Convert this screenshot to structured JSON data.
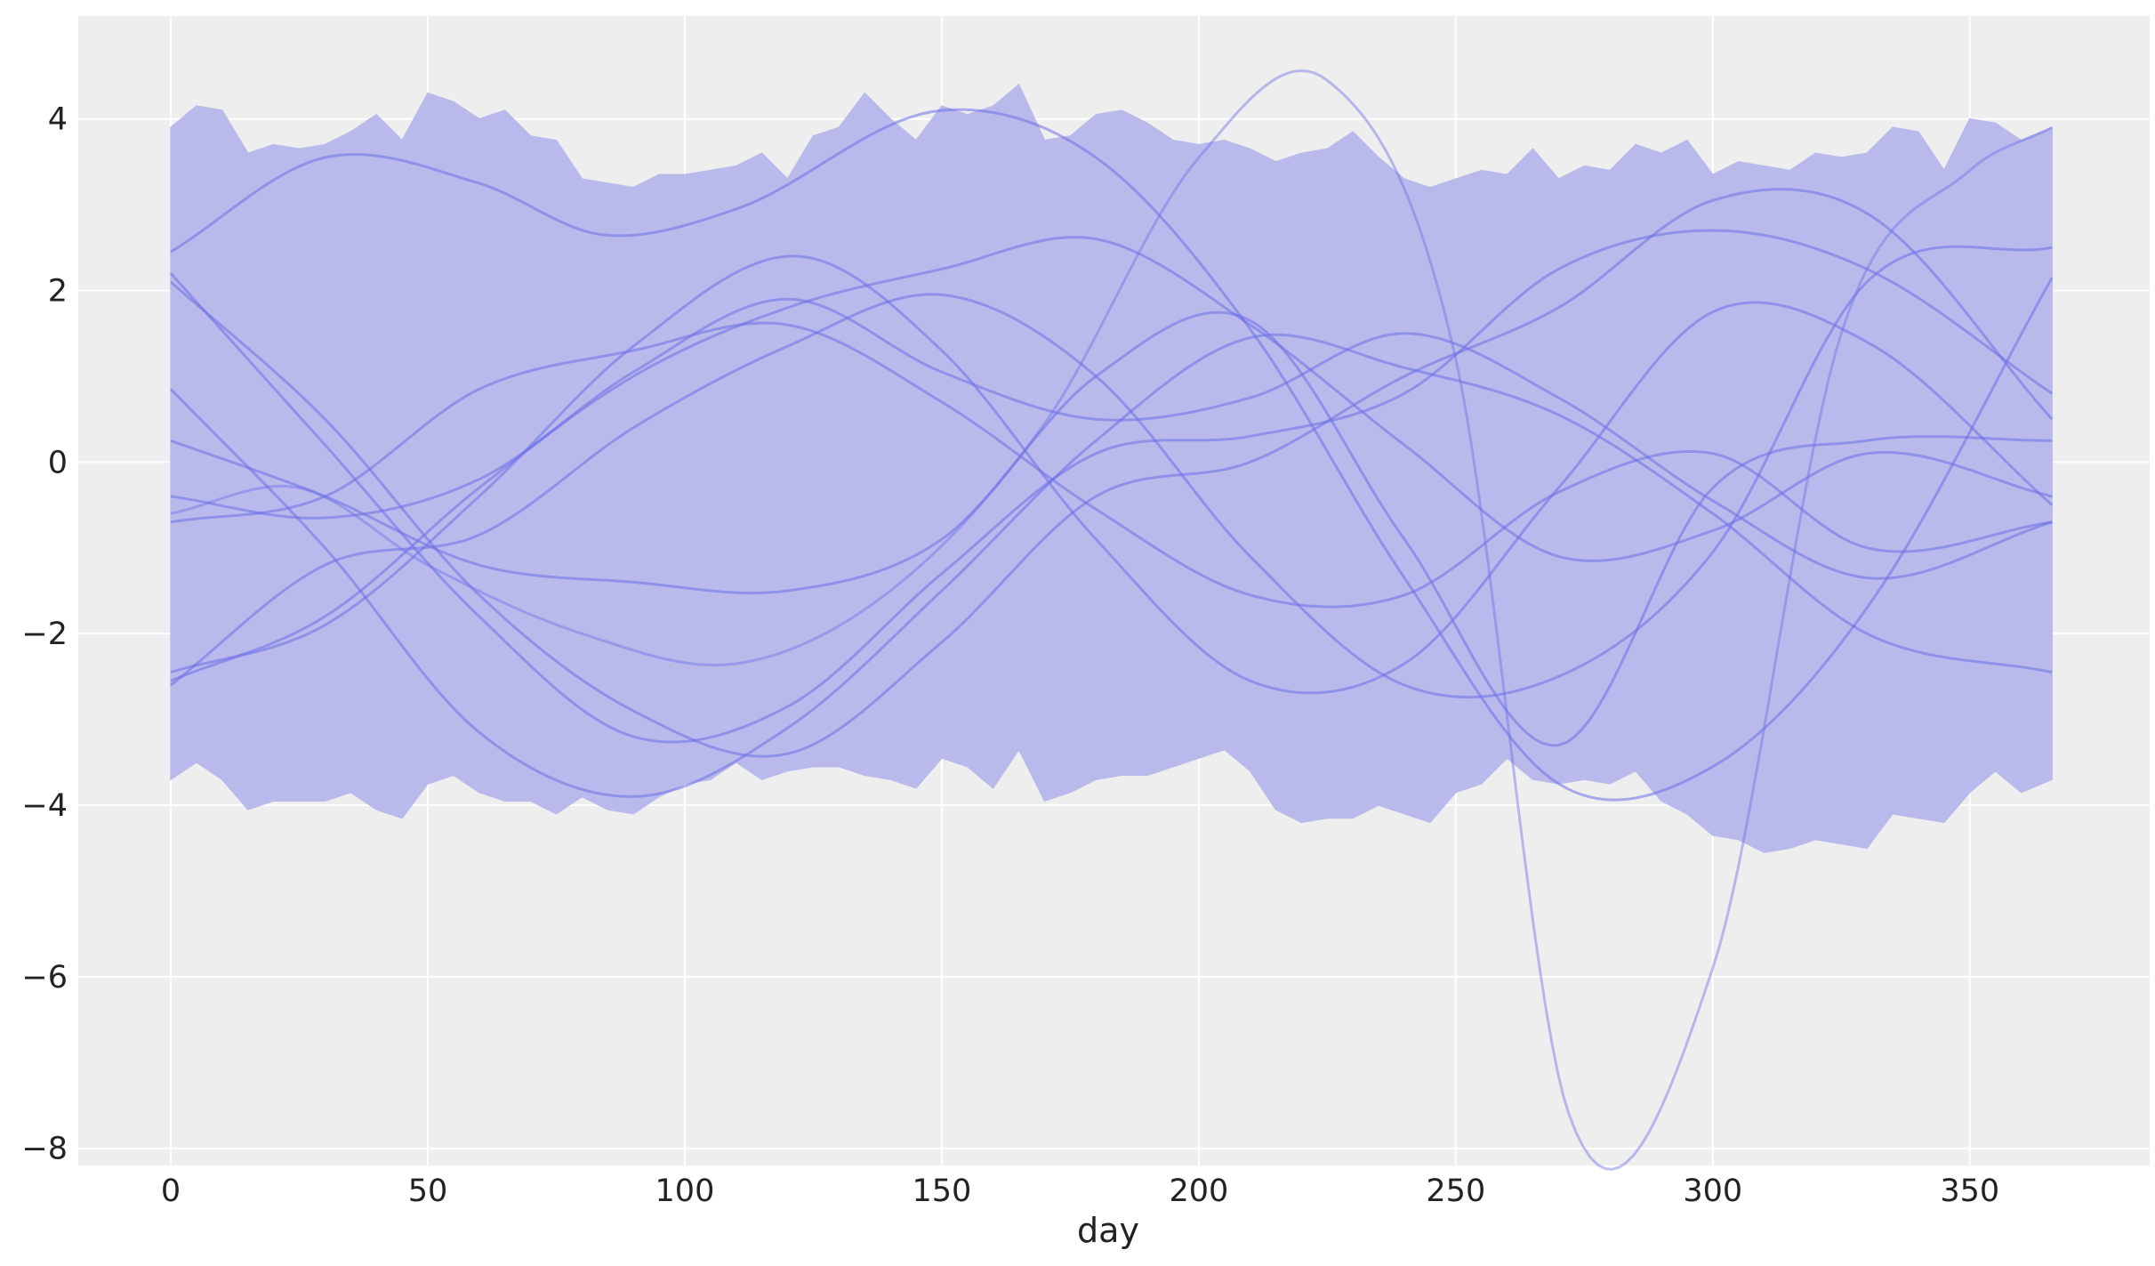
{
  "chart_data": {
    "type": "line",
    "title": "",
    "xlabel": "day",
    "ylabel": "",
    "xlim": [
      -18,
      385
    ],
    "ylim": [
      -8.2,
      5.2
    ],
    "x_ticks": [
      0,
      50,
      100,
      150,
      200,
      250,
      300,
      350
    ],
    "x_tick_labels": [
      "0",
      "50",
      "100",
      "150",
      "200",
      "250",
      "300",
      "350"
    ],
    "y_ticks": [
      4,
      2,
      0,
      -2,
      -4,
      -6,
      -8
    ],
    "y_tick_labels": [
      "4",
      "2",
      "0",
      "−2",
      "−4",
      "−6",
      "−8"
    ],
    "grid": true,
    "legend": "none",
    "colors": {
      "band": "#b9baeb",
      "line": "#6e70e8",
      "background": "#eeeeee",
      "grid": "#ffffff"
    },
    "band": {
      "x": [
        0,
        5,
        10,
        15,
        20,
        25,
        30,
        35,
        40,
        45,
        50,
        55,
        60,
        65,
        70,
        75,
        80,
        85,
        90,
        95,
        100,
        105,
        110,
        115,
        120,
        125,
        130,
        135,
        140,
        145,
        150,
        155,
        160,
        165,
        170,
        175,
        180,
        185,
        190,
        195,
        200,
        205,
        210,
        215,
        220,
        225,
        230,
        235,
        240,
        245,
        250,
        255,
        260,
        265,
        270,
        275,
        280,
        285,
        290,
        295,
        300,
        305,
        310,
        315,
        320,
        325,
        330,
        335,
        340,
        345,
        350,
        355,
        360,
        366
      ],
      "upper": [
        3.9,
        4.15,
        4.1,
        3.6,
        3.7,
        3.65,
        3.7,
        3.85,
        4.05,
        3.75,
        4.3,
        4.2,
        4.0,
        4.1,
        3.8,
        3.75,
        3.3,
        3.25,
        3.2,
        3.35,
        3.35,
        3.4,
        3.45,
        3.6,
        3.3,
        3.8,
        3.9,
        4.3,
        4.0,
        3.75,
        4.15,
        4.05,
        4.15,
        4.4,
        3.75,
        3.8,
        4.05,
        4.1,
        3.95,
        3.75,
        3.7,
        3.75,
        3.65,
        3.5,
        3.6,
        3.65,
        3.85,
        3.55,
        3.3,
        3.2,
        3.3,
        3.4,
        3.35,
        3.65,
        3.3,
        3.45,
        3.4,
        3.7,
        3.6,
        3.75,
        3.35,
        3.5,
        3.45,
        3.4,
        3.6,
        3.55,
        3.6,
        3.9,
        3.85,
        3.4,
        4.0,
        3.95,
        3.75,
        3.9
      ],
      "lower": [
        -3.7,
        -3.5,
        -3.7,
        -4.05,
        -3.95,
        -3.95,
        -3.95,
        -3.85,
        -4.05,
        -4.15,
        -3.75,
        -3.65,
        -3.85,
        -3.95,
        -3.95,
        -4.1,
        -3.9,
        -4.05,
        -4.1,
        -3.9,
        -3.75,
        -3.7,
        -3.5,
        -3.7,
        -3.6,
        -3.55,
        -3.55,
        -3.65,
        -3.7,
        -3.8,
        -3.45,
        -3.55,
        -3.8,
        -3.35,
        -3.95,
        -3.85,
        -3.7,
        -3.65,
        -3.65,
        -3.55,
        -3.45,
        -3.35,
        -3.6,
        -4.05,
        -4.2,
        -4.15,
        -4.15,
        -4.0,
        -4.1,
        -4.2,
        -3.85,
        -3.75,
        -3.45,
        -3.7,
        -3.75,
        -3.7,
        -3.75,
        -3.6,
        -3.95,
        -4.1,
        -4.35,
        -4.4,
        -4.55,
        -4.5,
        -4.4,
        -4.45,
        -4.5,
        -4.1,
        -4.15,
        -4.2,
        -3.85,
        -3.6,
        -3.85,
        -3.7
      ]
    },
    "series": [
      {
        "x": [
          0,
          30,
          60,
          84,
          110,
          150,
          180,
          210,
          240,
          270,
          300,
          330,
          366
        ],
        "values": [
          2.45,
          3.55,
          3.25,
          2.65,
          2.95,
          4.1,
          3.55,
          1.55,
          -1.35,
          -3.75,
          -3.55,
          -1.7,
          2.15
        ]
      },
      {
        "x": [
          0,
          30,
          60,
          90,
          120,
          150,
          180,
          210,
          240,
          270,
          300,
          330,
          366
        ],
        "values": [
          2.2,
          0.2,
          -1.8,
          -3.2,
          -2.85,
          -1.3,
          0.1,
          0.3,
          0.8,
          2.25,
          2.7,
          2.25,
          0.8
        ]
      },
      {
        "x": [
          0,
          30,
          60,
          90,
          120,
          150,
          180,
          210,
          240,
          270,
          300,
          330,
          366
        ],
        "values": [
          2.1,
          0.5,
          -1.55,
          -2.9,
          -3.4,
          -2.1,
          -0.4,
          0.0,
          1.0,
          1.8,
          3.05,
          2.9,
          0.5
        ]
      },
      {
        "x": [
          0,
          30,
          60,
          90,
          120,
          150,
          180,
          210,
          240,
          270,
          300,
          330,
          366
        ],
        "values": [
          0.85,
          -1.0,
          -3.15,
          -3.9,
          -3.1,
          -1.5,
          0.25,
          1.45,
          1.1,
          0.55,
          -0.6,
          -2.0,
          -2.45
        ]
      },
      {
        "x": [
          0,
          30,
          60,
          90,
          122,
          150,
          180,
          210,
          240,
          270,
          300,
          330,
          366
        ],
        "values": [
          -2.45,
          -1.9,
          -0.4,
          1.35,
          2.4,
          1.3,
          -0.9,
          -2.55,
          -2.35,
          -0.3,
          1.75,
          1.4,
          -0.5
        ]
      },
      {
        "x": [
          0,
          30,
          60,
          90,
          120,
          150,
          180,
          210,
          240,
          270,
          300,
          330,
          366
        ],
        "values": [
          -2.55,
          -1.8,
          -0.3,
          1.0,
          1.8,
          2.25,
          2.6,
          1.6,
          0.2,
          -1.1,
          -0.8,
          0.1,
          -0.4
        ]
      },
      {
        "x": [
          0,
          30,
          60,
          90,
          120,
          150,
          180,
          210,
          240,
          270,
          300,
          330,
          366
        ],
        "values": [
          -0.4,
          -0.65,
          -0.2,
          1.05,
          1.9,
          1.05,
          0.5,
          0.75,
          1.5,
          0.75,
          -0.45,
          -1.35,
          -0.7
        ]
      },
      {
        "x": [
          0,
          30,
          60,
          90,
          120,
          150,
          180,
          210,
          240,
          270,
          300,
          330,
          366
        ],
        "values": [
          0.25,
          -0.4,
          -1.2,
          -1.4,
          -1.5,
          -0.9,
          1.0,
          1.65,
          -0.9,
          -3.3,
          -0.3,
          0.25,
          0.25
        ]
      },
      {
        "x": [
          0,
          30,
          60,
          90,
          120,
          150,
          180,
          210,
          240,
          270,
          300,
          330,
          366
        ],
        "values": [
          -0.7,
          -0.4,
          0.85,
          1.3,
          1.6,
          0.7,
          -0.55,
          -1.55,
          -1.55,
          -0.35,
          0.1,
          -1.0,
          -0.7
        ]
      },
      {
        "x": [
          0,
          30,
          60,
          90,
          120,
          150,
          180,
          210,
          240,
          270,
          300,
          330,
          366
        ],
        "values": [
          -2.6,
          -1.2,
          -0.85,
          0.4,
          1.35,
          1.95,
          1.0,
          -1.1,
          -2.6,
          -2.5,
          -1.05,
          2.1,
          2.5
        ]
      },
      {
        "x": [
          0,
          25,
          50,
          80,
          110,
          140,
          170,
          200,
          225,
          250,
          272,
          300,
          325,
          350,
          366
        ],
        "values": [
          -0.6,
          -0.3,
          -1.2,
          -2.0,
          -2.35,
          -1.5,
          0.45,
          3.55,
          4.45,
          1.2,
          -7.6,
          -5.9,
          1.5,
          3.4,
          3.9
        ]
      }
    ]
  }
}
